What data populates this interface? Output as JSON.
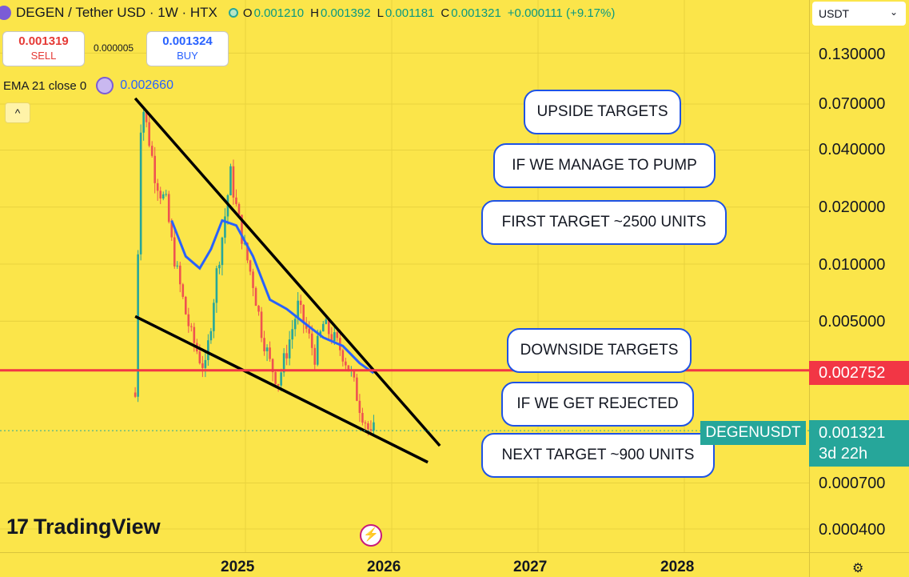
{
  "header": {
    "title": "DEGEN / Tether USD · 1W · HTX",
    "open_label": "O",
    "open": "0.001210",
    "high_label": "H",
    "high": "0.001392",
    "low_label": "L",
    "low": "0.001181",
    "close_label": "C",
    "close": "0.001321",
    "change": "+0.000111 (+9.17%)"
  },
  "trade": {
    "sell_price": "0.001319",
    "sell_label": "SELL",
    "spread": "0.000005",
    "buy_price": "0.001324",
    "buy_label": "BUY"
  },
  "indicator": {
    "label": "EMA 21 close 0",
    "value": "0.002660"
  },
  "collapse_glyph": "^",
  "currency": {
    "selected": "USDT",
    "chevron": "⌄"
  },
  "price_ticks": [
    "0.130000",
    "0.070000",
    "0.040000",
    "0.020000",
    "0.010000",
    "0.005000",
    "0.000700",
    "0.000400"
  ],
  "price_tags": {
    "level": "0.002752",
    "last": "0.001321",
    "countdown": "3d 22h",
    "symbol": "DEGENUSDT"
  },
  "time_ticks": [
    "2025",
    "2026",
    "2027",
    "2028"
  ],
  "callouts": {
    "upside": "UPSIDE TARGETS",
    "pump": "IF WE MANAGE TO PUMP",
    "first": "FIRST TARGET ~2500 UNITS",
    "downside": "DOWNSIDE TARGETS",
    "rejected": "IF WE GET REJECTED",
    "next": "NEXT TARGET ~900 UNITS"
  },
  "branding": {
    "logo_mark": "17",
    "logo_text": "TradingView"
  },
  "icons": {
    "bolt": "lightning-icon",
    "gear": "settings-icon"
  },
  "colors": {
    "up": "#26a69a",
    "down": "#ef5350",
    "ema": "#2962ff",
    "level": "#f23645",
    "background": "#fbe54a"
  },
  "chart_data": {
    "type": "candlestick",
    "scale": "log",
    "timeframe": "1W",
    "y_range": [
      0.00035,
      0.17
    ],
    "x_range": [
      "2024-03",
      "2028-06"
    ],
    "horizontal_level": 0.002752,
    "ema_period": 21,
    "ema_last": 0.00266,
    "last_price": 0.001321,
    "trendlines": [
      {
        "name": "upper",
        "points": [
          [
            "2024-04-01",
            0.075
          ],
          [
            "2026-05-01",
            0.0011
          ]
        ]
      },
      {
        "name": "lower",
        "points": [
          [
            "2024-04-01",
            0.0053
          ],
          [
            "2026-04-01",
            0.0009
          ]
        ]
      }
    ],
    "price_path": [
      [
        "2024-04-01",
        0.002
      ],
      [
        "2024-04-08",
        0.012
      ],
      [
        "2024-04-15",
        0.055
      ],
      [
        "2024-04-22",
        0.065
      ],
      [
        "2024-05-06",
        0.045
      ],
      [
        "2024-05-20",
        0.03
      ],
      [
        "2024-06-03",
        0.024
      ],
      [
        "2024-06-17",
        0.021
      ],
      [
        "2024-07-01",
        0.013
      ],
      [
        "2024-07-15",
        0.009
      ],
      [
        "2024-08-05",
        0.0055
      ],
      [
        "2024-08-19",
        0.0042
      ],
      [
        "2024-09-09",
        0.0032
      ],
      [
        "2024-09-23",
        0.0028
      ],
      [
        "2024-10-07",
        0.005
      ],
      [
        "2024-10-21",
        0.009
      ],
      [
        "2024-11-04",
        0.014
      ],
      [
        "2024-11-25",
        0.03
      ],
      [
        "2024-12-09",
        0.02
      ],
      [
        "2024-12-30",
        0.012
      ],
      [
        "2025-01-20",
        0.008
      ],
      [
        "2025-02-10",
        0.0045
      ],
      [
        "2025-03-03",
        0.003
      ],
      [
        "2025-03-24",
        0.0024
      ],
      [
        "2025-04-14",
        0.0035
      ],
      [
        "2025-05-12",
        0.006
      ],
      [
        "2025-06-02",
        0.0045
      ],
      [
        "2025-06-23",
        0.0033
      ],
      [
        "2025-07-14",
        0.0048
      ],
      [
        "2025-08-04",
        0.0042
      ],
      [
        "2025-09-01",
        0.0034
      ],
      [
        "2025-09-22",
        0.0026
      ],
      [
        "2025-10-13",
        0.0018
      ],
      [
        "2025-10-27",
        0.0015
      ],
      [
        "2025-11-10",
        0.00121
      ],
      [
        "2025-11-17",
        0.001321
      ]
    ],
    "ema_path": [
      [
        "2024-07-01",
        0.017
      ],
      [
        "2024-08-05",
        0.011
      ],
      [
        "2024-09-09",
        0.0095
      ],
      [
        "2024-10-07",
        0.012
      ],
      [
        "2024-11-04",
        0.017
      ],
      [
        "2024-12-09",
        0.016
      ],
      [
        "2025-01-20",
        0.011
      ],
      [
        "2025-03-03",
        0.0065
      ],
      [
        "2025-04-14",
        0.0058
      ],
      [
        "2025-06-02",
        0.0048
      ],
      [
        "2025-07-14",
        0.0041
      ],
      [
        "2025-09-01",
        0.0037
      ],
      [
        "2025-10-13",
        0.003
      ],
      [
        "2025-11-17",
        0.00266
      ]
    ]
  }
}
